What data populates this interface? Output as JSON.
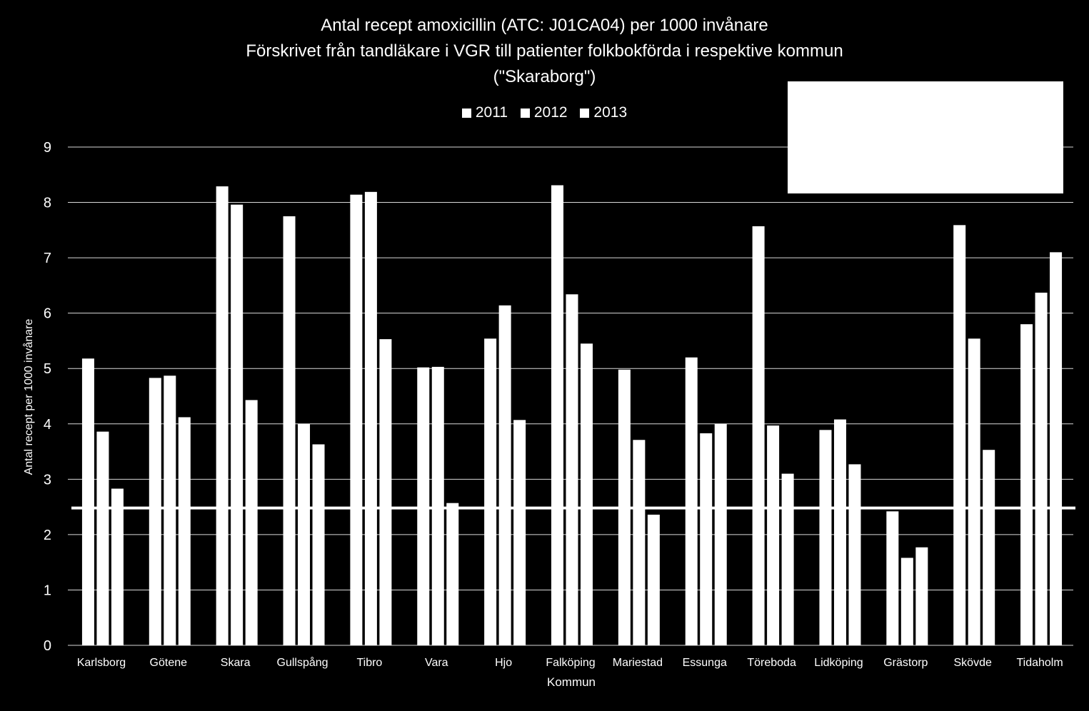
{
  "chart_data": {
    "type": "bar",
    "title_lines": [
      "Antal recept amoxicillin (ATC: J01CA04) per 1000 invånare",
      "Förskrivet från tandläkare i VGR till patienter folkbokförda i respektive kommun",
      "(\"Skaraborg\")"
    ],
    "xlabel": "Kommun",
    "ylabel": "Antal recept  per 1000 invånare",
    "ylim": [
      0,
      9
    ],
    "yticks": [
      "0",
      "1",
      "2",
      "3",
      "4",
      "5",
      "6",
      "7",
      "8",
      "9"
    ],
    "grid": true,
    "legend_position": "top",
    "bar_color": "#ffffff",
    "reference_line_value": 2.48,
    "categories": [
      "Karlsborg",
      "Götene",
      "Skara",
      "Gullspång",
      "Tibro",
      "Vara",
      "Hjo",
      "Falköping",
      "Mariestad",
      "Essunga",
      "Töreboda",
      "Lidköping",
      "Grästorp",
      "Skövde",
      "Tidaholm"
    ],
    "series": [
      {
        "name": "2011",
        "values": [
          5.18,
          4.83,
          8.29,
          7.75,
          8.14,
          5.02,
          5.54,
          8.31,
          4.98,
          5.2,
          7.57,
          3.89,
          2.42,
          7.59,
          5.8
        ]
      },
      {
        "name": "2012",
        "values": [
          3.86,
          4.87,
          7.96,
          4.0,
          8.19,
          5.03,
          6.14,
          6.34,
          3.71,
          3.83,
          3.97,
          4.08,
          1.58,
          5.54,
          6.37
        ]
      },
      {
        "name": "2013",
        "values": [
          2.83,
          4.12,
          4.43,
          3.63,
          5.53,
          2.57,
          4.07,
          5.45,
          2.36,
          4.0,
          3.1,
          3.27,
          1.77,
          3.53,
          7.1
        ]
      }
    ]
  }
}
